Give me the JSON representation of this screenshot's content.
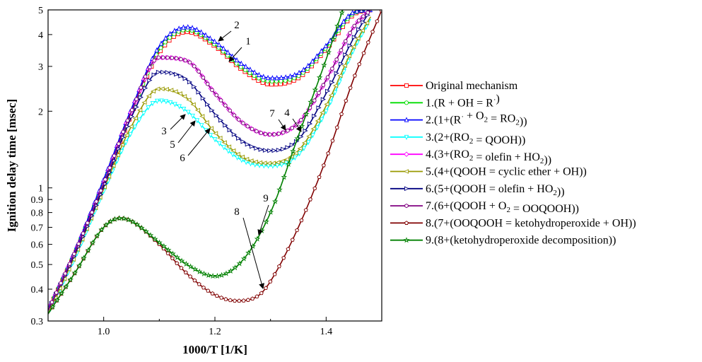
{
  "chart_data": {
    "type": "line",
    "xlabel": "1000/T [1/K]",
    "ylabel": "Ignition delay time [msec]",
    "xlim": [
      0.9,
      1.5
    ],
    "ylim": [
      0.3,
      5
    ],
    "yscale": "log",
    "grid": false,
    "legend_position": "right",
    "x_ticks": [
      "1.0",
      "1.2",
      "1.4"
    ],
    "y_ticks": [
      "0.3",
      "0.4",
      "0.5",
      "0.6",
      "0.7",
      "0.8",
      "0.9",
      "1",
      "2",
      "3",
      "4",
      "5"
    ],
    "series": [
      {
        "name": "Original mechanism",
        "label_parts": [
          "Original mechanism"
        ],
        "color": "#ff0000",
        "marker": "square",
        "x": [
          0.9,
          0.95,
          1.0,
          1.05,
          1.1,
          1.15,
          1.2,
          1.25,
          1.3,
          1.35,
          1.4,
          1.45,
          1.48
        ],
        "y": [
          0.33,
          0.56,
          1.03,
          1.95,
          3.4,
          4.1,
          3.6,
          2.9,
          2.55,
          2.7,
          3.5,
          4.8,
          5.0
        ]
      },
      {
        "name": "1.(R + OH = R·)",
        "label_parts": [
          "1.(R + OH = R",
          {
            "sup": "·"
          },
          ")"
        ],
        "color": "#00dd00",
        "marker": "circle",
        "x": [
          0.9,
          0.95,
          1.0,
          1.05,
          1.1,
          1.15,
          1.2,
          1.25,
          1.3,
          1.35,
          1.4,
          1.45,
          1.48
        ],
        "y": [
          0.33,
          0.57,
          1.05,
          1.98,
          3.48,
          4.18,
          3.65,
          2.95,
          2.62,
          2.75,
          3.55,
          4.85,
          5.0
        ]
      },
      {
        "name": "2.(1+(R· + O2 = RO2))",
        "label_parts": [
          "2.(1+(R",
          {
            "sup": "·"
          },
          " + O",
          {
            "sub": "2"
          },
          " = RO",
          {
            "sub": "2"
          },
          "))"
        ],
        "color": "#0000ff",
        "marker": "triangle-up",
        "x": [
          0.9,
          0.95,
          1.0,
          1.05,
          1.1,
          1.15,
          1.2,
          1.25,
          1.3,
          1.35,
          1.4,
          1.45,
          1.48
        ],
        "y": [
          0.33,
          0.58,
          1.08,
          2.05,
          3.6,
          4.28,
          3.75,
          3.05,
          2.7,
          2.82,
          3.62,
          4.9,
          5.0
        ]
      },
      {
        "name": "3.(2+(RO2 = QOOH))",
        "label_parts": [
          "3.(2+(RO",
          {
            "sub": "2"
          },
          " = QOOH))"
        ],
        "color": "#00ffff",
        "marker": "triangle-down",
        "x": [
          0.9,
          0.95,
          1.0,
          1.05,
          1.1,
          1.15,
          1.2,
          1.25,
          1.3,
          1.35,
          1.4,
          1.45,
          1.48
        ],
        "y": [
          0.32,
          0.54,
          0.97,
          1.65,
          2.2,
          2.0,
          1.55,
          1.28,
          1.22,
          1.35,
          2.0,
          3.5,
          4.6
        ]
      },
      {
        "name": "4.(3+(RO2 = olefin + HO2))",
        "label_parts": [
          "4.(3+(RO",
          {
            "sub": "2"
          },
          " = olefin + HO",
          {
            "sub": "2"
          },
          "))"
        ],
        "color": "#ff00ff",
        "marker": "diamond",
        "x": [
          0.9,
          0.95,
          1.0,
          1.05,
          1.1,
          1.15,
          1.2,
          1.25,
          1.3,
          1.35,
          1.4,
          1.45,
          1.48
        ],
        "y": [
          0.33,
          0.57,
          1.04,
          2.0,
          3.25,
          3.15,
          2.35,
          1.8,
          1.62,
          1.8,
          2.65,
          4.3,
          5.0
        ]
      },
      {
        "name": "5.(4+(QOOH = cyclic ether + OH))",
        "label_parts": [
          "5.(4+(QOOH = cyclic ether + OH))"
        ],
        "color": "#999900",
        "marker": "triangle-left",
        "x": [
          0.9,
          0.95,
          1.0,
          1.05,
          1.1,
          1.15,
          1.2,
          1.25,
          1.3,
          1.35,
          1.4,
          1.45,
          1.48
        ],
        "y": [
          0.32,
          0.55,
          0.99,
          1.75,
          2.45,
          2.25,
          1.65,
          1.32,
          1.25,
          1.4,
          2.1,
          3.6,
          4.7
        ]
      },
      {
        "name": "6.(5+(QOOH = olefin + HO2))",
        "label_parts": [
          "6.(5+(QOOH = olefin + HO",
          {
            "sub": "2"
          },
          "))"
        ],
        "color": "#000080",
        "marker": "triangle-right",
        "x": [
          0.9,
          0.95,
          1.0,
          1.05,
          1.1,
          1.15,
          1.2,
          1.25,
          1.3,
          1.35,
          1.4,
          1.45,
          1.48
        ],
        "y": [
          0.33,
          0.56,
          1.01,
          1.9,
          2.85,
          2.65,
          1.95,
          1.52,
          1.4,
          1.55,
          2.35,
          3.9,
          5.0
        ]
      },
      {
        "name": "7.(6+(QOOH + O2 = OOQOOH))",
        "label_parts": [
          "7.(6+(QOOH + O",
          {
            "sub": "2"
          },
          " = OOQOOH))"
        ],
        "color": "#800080",
        "marker": "hexagon",
        "x": [
          0.9,
          0.95,
          1.0,
          1.05,
          1.1,
          1.15,
          1.2,
          1.25,
          1.3,
          1.35,
          1.4,
          1.45,
          1.48
        ],
        "y": [
          0.33,
          0.57,
          1.04,
          2.0,
          3.25,
          3.15,
          2.35,
          1.8,
          1.62,
          1.8,
          2.65,
          4.3,
          5.0
        ]
      },
      {
        "name": "8.(7+(OOQOOH = ketohydroperoxide + OH))",
        "label_parts": [
          "8.(7+(OOQOOH = ketohydroperoxide + OH))"
        ],
        "color": "#800000",
        "marker": "pentagon",
        "x": [
          0.9,
          0.95,
          1.0,
          1.03,
          1.05,
          1.1,
          1.15,
          1.2,
          1.24,
          1.28,
          1.3,
          1.35,
          1.4,
          1.45,
          1.5
        ],
        "y": [
          0.32,
          0.47,
          0.7,
          0.76,
          0.74,
          0.6,
          0.46,
          0.38,
          0.36,
          0.38,
          0.43,
          0.7,
          1.3,
          2.7,
          5.0
        ]
      },
      {
        "name": "9.(8+(ketohydroperoxide decomposition))",
        "label_parts": [
          "9.(8+(ketohydroperoxide decomposition))"
        ],
        "color": "#008000",
        "marker": "star",
        "x": [
          0.9,
          0.95,
          1.0,
          1.03,
          1.05,
          1.1,
          1.15,
          1.2,
          1.25,
          1.3,
          1.35,
          1.4,
          1.43
        ],
        "y": [
          0.32,
          0.47,
          0.7,
          0.76,
          0.74,
          0.61,
          0.5,
          0.45,
          0.52,
          0.8,
          1.6,
          3.2,
          5.0
        ]
      }
    ],
    "annotations": [
      {
        "text": "1"
      },
      {
        "text": "2"
      },
      {
        "text": "3"
      },
      {
        "text": "4"
      },
      {
        "text": "5"
      },
      {
        "text": "6"
      },
      {
        "text": "7"
      },
      {
        "text": "8"
      },
      {
        "text": "9"
      }
    ]
  }
}
